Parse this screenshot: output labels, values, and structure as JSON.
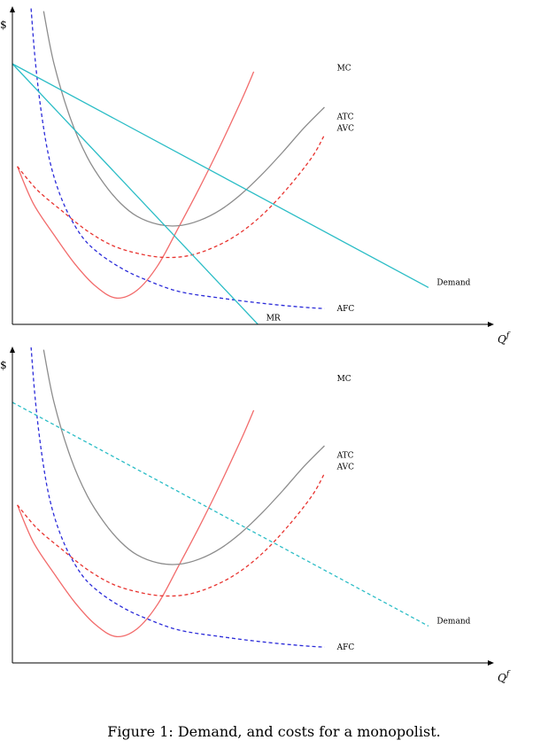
{
  "caption": "Figure 1: Demand, and costs for a monopolist.",
  "colors": {
    "mc": "#f26b6b",
    "avc": "#e8332f",
    "atc": "#8c8c8c",
    "afc": "#2b2bd9",
    "demand": "#2bbdc6",
    "mr": "#2bbdc6"
  },
  "chart_data": [
    {
      "type": "line",
      "ylabel": "$",
      "xlabel": "Q",
      "xlabel_superscript": "f",
      "xlim": [
        0,
        10
      ],
      "ylim": [
        0,
        10
      ],
      "series": [
        {
          "name": "MC",
          "style": "solid",
          "color_key": "mc",
          "label_x": 7.8,
          "label_y": 9.75,
          "x": [
            0.12,
            0.5,
            1.0,
            1.5,
            2.0,
            2.5,
            3.0,
            3.5,
            4.0,
            4.5,
            5.0,
            5.5,
            5.8
          ],
          "y": [
            6.0,
            4.6,
            3.4,
            2.3,
            1.45,
            1.0,
            1.3,
            2.25,
            3.7,
            5.2,
            6.8,
            8.5,
            9.6
          ]
        },
        {
          "name": "AVC",
          "style": "dashed",
          "color_key": "avc",
          "label_x": 7.8,
          "label_y": 7.45,
          "x": [
            0.12,
            0.6,
            1.2,
            1.8,
            2.4,
            3.0,
            3.6,
            4.2,
            4.8,
            5.4,
            6.0,
            6.6,
            7.2,
            7.5
          ],
          "y": [
            6.0,
            5.1,
            4.3,
            3.55,
            3.0,
            2.7,
            2.55,
            2.6,
            2.9,
            3.4,
            4.15,
            5.15,
            6.35,
            7.2
          ]
        },
        {
          "name": "ATC",
          "style": "solid",
          "color_key": "atc",
          "label_x": 7.8,
          "label_y": 7.9,
          "x": [
            0.75,
            1.0,
            1.4,
            1.8,
            2.2,
            2.6,
            3.0,
            3.5,
            4.0,
            4.5,
            5.0,
            5.5,
            6.0,
            6.5,
            7.0,
            7.5
          ],
          "y": [
            11.9,
            9.9,
            7.8,
            6.35,
            5.35,
            4.6,
            4.1,
            3.8,
            3.75,
            3.95,
            4.35,
            4.95,
            5.7,
            6.55,
            7.45,
            8.25
          ]
        },
        {
          "name": "AFC",
          "style": "dashed",
          "color_key": "afc",
          "label_x": 7.8,
          "label_y": 0.6,
          "x": [
            0.45,
            0.55,
            0.7,
            0.9,
            1.2,
            1.6,
            2.0,
            2.6,
            3.2,
            4.0,
            5.0,
            6.0,
            7.0,
            7.5
          ],
          "y": [
            12.0,
            10.0,
            8.0,
            6.2,
            4.7,
            3.5,
            2.8,
            2.15,
            1.7,
            1.25,
            1.0,
            0.8,
            0.65,
            0.6
          ]
        },
        {
          "name": "Demand",
          "style": "solid",
          "color_key": "demand",
          "label_x": 10.2,
          "label_y": 1.6,
          "x": [
            0,
            10
          ],
          "y": [
            9.9,
            1.4
          ]
        },
        {
          "name": "MR",
          "style": "solid",
          "color_key": "mr",
          "label_x": 6.1,
          "label_y": 0.25,
          "x": [
            0,
            5.9
          ],
          "y": [
            9.9,
            0
          ]
        }
      ]
    },
    {
      "type": "line",
      "ylabel": "$",
      "xlabel": "Q",
      "xlabel_superscript": "f",
      "xlim": [
        0,
        10
      ],
      "ylim": [
        0,
        10
      ],
      "series": [
        {
          "name": "MC",
          "style": "solid",
          "color_key": "mc",
          "label_x": 7.8,
          "label_y": 10.8,
          "x": [
            0.12,
            0.5,
            1.0,
            1.5,
            2.0,
            2.5,
            3.0,
            3.5,
            4.0,
            4.5,
            5.0,
            5.5,
            5.8
          ],
          "y": [
            6.0,
            4.6,
            3.4,
            2.3,
            1.45,
            1.0,
            1.3,
            2.25,
            3.7,
            5.2,
            6.8,
            8.5,
            9.6
          ]
        },
        {
          "name": "AVC",
          "style": "dashed",
          "color_key": "avc",
          "label_x": 7.8,
          "label_y": 7.45,
          "x": [
            0.12,
            0.6,
            1.2,
            1.8,
            2.4,
            3.0,
            3.6,
            4.2,
            4.8,
            5.4,
            6.0,
            6.6,
            7.2,
            7.5
          ],
          "y": [
            6.0,
            5.1,
            4.3,
            3.55,
            3.0,
            2.7,
            2.55,
            2.6,
            2.9,
            3.4,
            4.15,
            5.15,
            6.35,
            7.2
          ]
        },
        {
          "name": "ATC",
          "style": "solid",
          "color_key": "atc",
          "label_x": 7.8,
          "label_y": 7.9,
          "x": [
            0.75,
            1.0,
            1.4,
            1.8,
            2.2,
            2.6,
            3.0,
            3.5,
            4.0,
            4.5,
            5.0,
            5.5,
            6.0,
            6.5,
            7.0,
            7.5
          ],
          "y": [
            11.9,
            9.9,
            7.8,
            6.35,
            5.35,
            4.6,
            4.1,
            3.8,
            3.75,
            3.95,
            4.35,
            4.95,
            5.7,
            6.55,
            7.45,
            8.25
          ]
        },
        {
          "name": "AFC",
          "style": "dashed",
          "color_key": "afc",
          "label_x": 7.8,
          "label_y": 0.6,
          "x": [
            0.45,
            0.55,
            0.7,
            0.9,
            1.2,
            1.6,
            2.0,
            2.6,
            3.2,
            4.0,
            5.0,
            6.0,
            7.0,
            7.5
          ],
          "y": [
            12.0,
            10.0,
            8.0,
            6.2,
            4.7,
            3.5,
            2.8,
            2.15,
            1.7,
            1.25,
            1.0,
            0.8,
            0.65,
            0.6
          ]
        },
        {
          "name": "Demand",
          "style": "dashed",
          "color_key": "demand",
          "label_x": 10.2,
          "label_y": 1.6,
          "x": [
            0,
            10
          ],
          "y": [
            9.9,
            1.4
          ]
        }
      ]
    }
  ]
}
